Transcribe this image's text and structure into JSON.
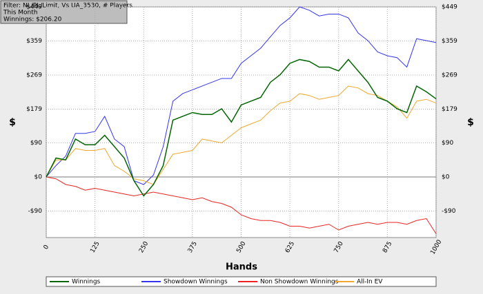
{
  "chart_data": {
    "type": "line",
    "header": [
      "Filter: NL/PL/Limit, Vs UA_3530, # Players",
      "This Month",
      "Winnings: $206.20"
    ],
    "xlabel": "Hands",
    "ylabel": "$",
    "x": [
      0,
      25,
      50,
      75,
      100,
      125,
      150,
      175,
      200,
      225,
      250,
      275,
      300,
      325,
      350,
      375,
      400,
      425,
      450,
      475,
      500,
      525,
      550,
      575,
      600,
      625,
      650,
      675,
      700,
      725,
      750,
      775,
      800,
      825,
      850,
      875,
      900,
      925,
      950,
      975,
      1000
    ],
    "series": [
      {
        "name": "Winnings",
        "color": "#006400",
        "values": [
          0,
          50,
          45,
          100,
          85,
          85,
          110,
          80,
          50,
          -10,
          -50,
          -20,
          30,
          150,
          160,
          170,
          165,
          165,
          180,
          145,
          190,
          200,
          210,
          250,
          270,
          300,
          310,
          305,
          290,
          290,
          280,
          310,
          280,
          250,
          210,
          200,
          180,
          170,
          240,
          225,
          206.2
        ]
      },
      {
        "name": "Showdown Winnings",
        "color": "#3333ee",
        "values": [
          0,
          30,
          55,
          115,
          115,
          120,
          160,
          100,
          80,
          -10,
          -20,
          5,
          80,
          200,
          220,
          230,
          240,
          250,
          260,
          260,
          300,
          320,
          340,
          370,
          400,
          420,
          449,
          440,
          425,
          430,
          430,
          420,
          380,
          360,
          330,
          320,
          315,
          290,
          365,
          360,
          355
        ]
      },
      {
        "name": "Non Showdown Winnings",
        "color": "#ee2222",
        "values": [
          0,
          -5,
          -20,
          -25,
          -35,
          -30,
          -35,
          -40,
          -45,
          -50,
          -45,
          -40,
          -45,
          -50,
          -55,
          -60,
          -55,
          -65,
          -70,
          -80,
          -100,
          -110,
          -115,
          -115,
          -120,
          -130,
          -130,
          -135,
          -130,
          -125,
          -140,
          -130,
          -125,
          -120,
          -125,
          -120,
          -120,
          -125,
          -115,
          -110,
          -150
        ]
      },
      {
        "name": "All-In EV",
        "color": "#f0a830",
        "values": [
          0,
          45,
          45,
          75,
          70,
          70,
          75,
          30,
          15,
          -5,
          -10,
          -20,
          20,
          60,
          65,
          70,
          100,
          95,
          90,
          110,
          130,
          140,
          150,
          175,
          195,
          200,
          220,
          215,
          205,
          210,
          215,
          240,
          235,
          220,
          215,
          200,
          185,
          155,
          200,
          205,
          195
        ]
      }
    ],
    "xlim": [
      0,
      1000
    ],
    "xticks": [
      0,
      125,
      250,
      375,
      500,
      625,
      750,
      875,
      1000
    ],
    "ylim": [
      -160,
      449
    ],
    "yticks": [
      {
        "value": 449,
        "label": "$449"
      },
      {
        "value": 359,
        "label": "$359"
      },
      {
        "value": 269,
        "label": "$269"
      },
      {
        "value": 179,
        "label": "$179"
      },
      {
        "value": 90,
        "label": "$90"
      },
      {
        "value": 0,
        "label": "$0"
      },
      {
        "value": -90,
        "label": "-$90"
      }
    ],
    "grid": true
  }
}
